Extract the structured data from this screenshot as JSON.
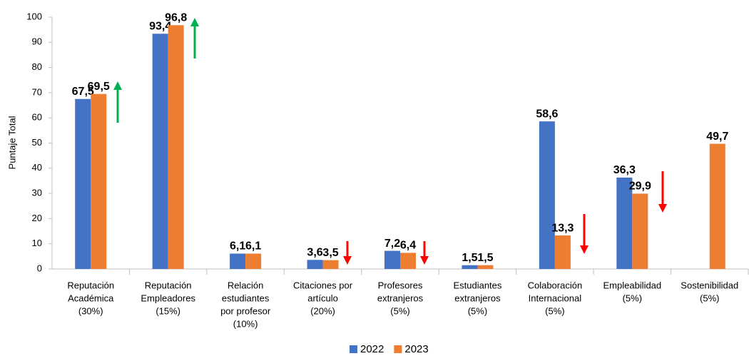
{
  "chart_data": {
    "type": "bar",
    "y_label": "Puntaje Total",
    "categories": [
      [
        "Reputación",
        "Académica",
        "(30%)"
      ],
      [
        "Reputación",
        "Empleadores",
        "(15%)"
      ],
      [
        "Relación",
        "estudiantes",
        "por profesor",
        "(10%)"
      ],
      [
        "Citaciones por",
        "artículo",
        "(20%)"
      ],
      [
        "Profesores",
        "extranjeros",
        "(5%)"
      ],
      [
        "Estudiantes",
        "extranjeros",
        "(5%)"
      ],
      [
        "Colaboración",
        "Internacional",
        "(5%)"
      ],
      [
        "Empleabilidad",
        "(5%)"
      ],
      [
        "Sostenibilidad",
        "(5%)"
      ]
    ],
    "series": [
      {
        "name": "2022",
        "color": "#4472c4",
        "values": [
          67.5,
          93.4,
          6.1,
          3.6,
          7.2,
          1.5,
          58.6,
          36.3,
          null
        ],
        "value_labels": [
          "67,5",
          "93,4",
          "6,1",
          "3,6",
          "7,2",
          "1,5",
          "58,6",
          "36,3",
          null
        ]
      },
      {
        "name": "2023",
        "color": "#ed7d31",
        "values": [
          69.5,
          96.8,
          6.1,
          3.5,
          6.4,
          1.5,
          13.3,
          29.9,
          49.7
        ],
        "value_labels": [
          "69,5",
          "96,8",
          "6,1",
          "3,5",
          "6,4",
          "1,5",
          "13,3",
          "29,9",
          "49,7"
        ]
      }
    ],
    "ylim": [
      0,
      100
    ],
    "yticks": [
      0,
      10,
      20,
      30,
      40,
      50,
      60,
      70,
      80,
      90,
      100
    ],
    "grid": false,
    "legend": "bottom"
  }
}
